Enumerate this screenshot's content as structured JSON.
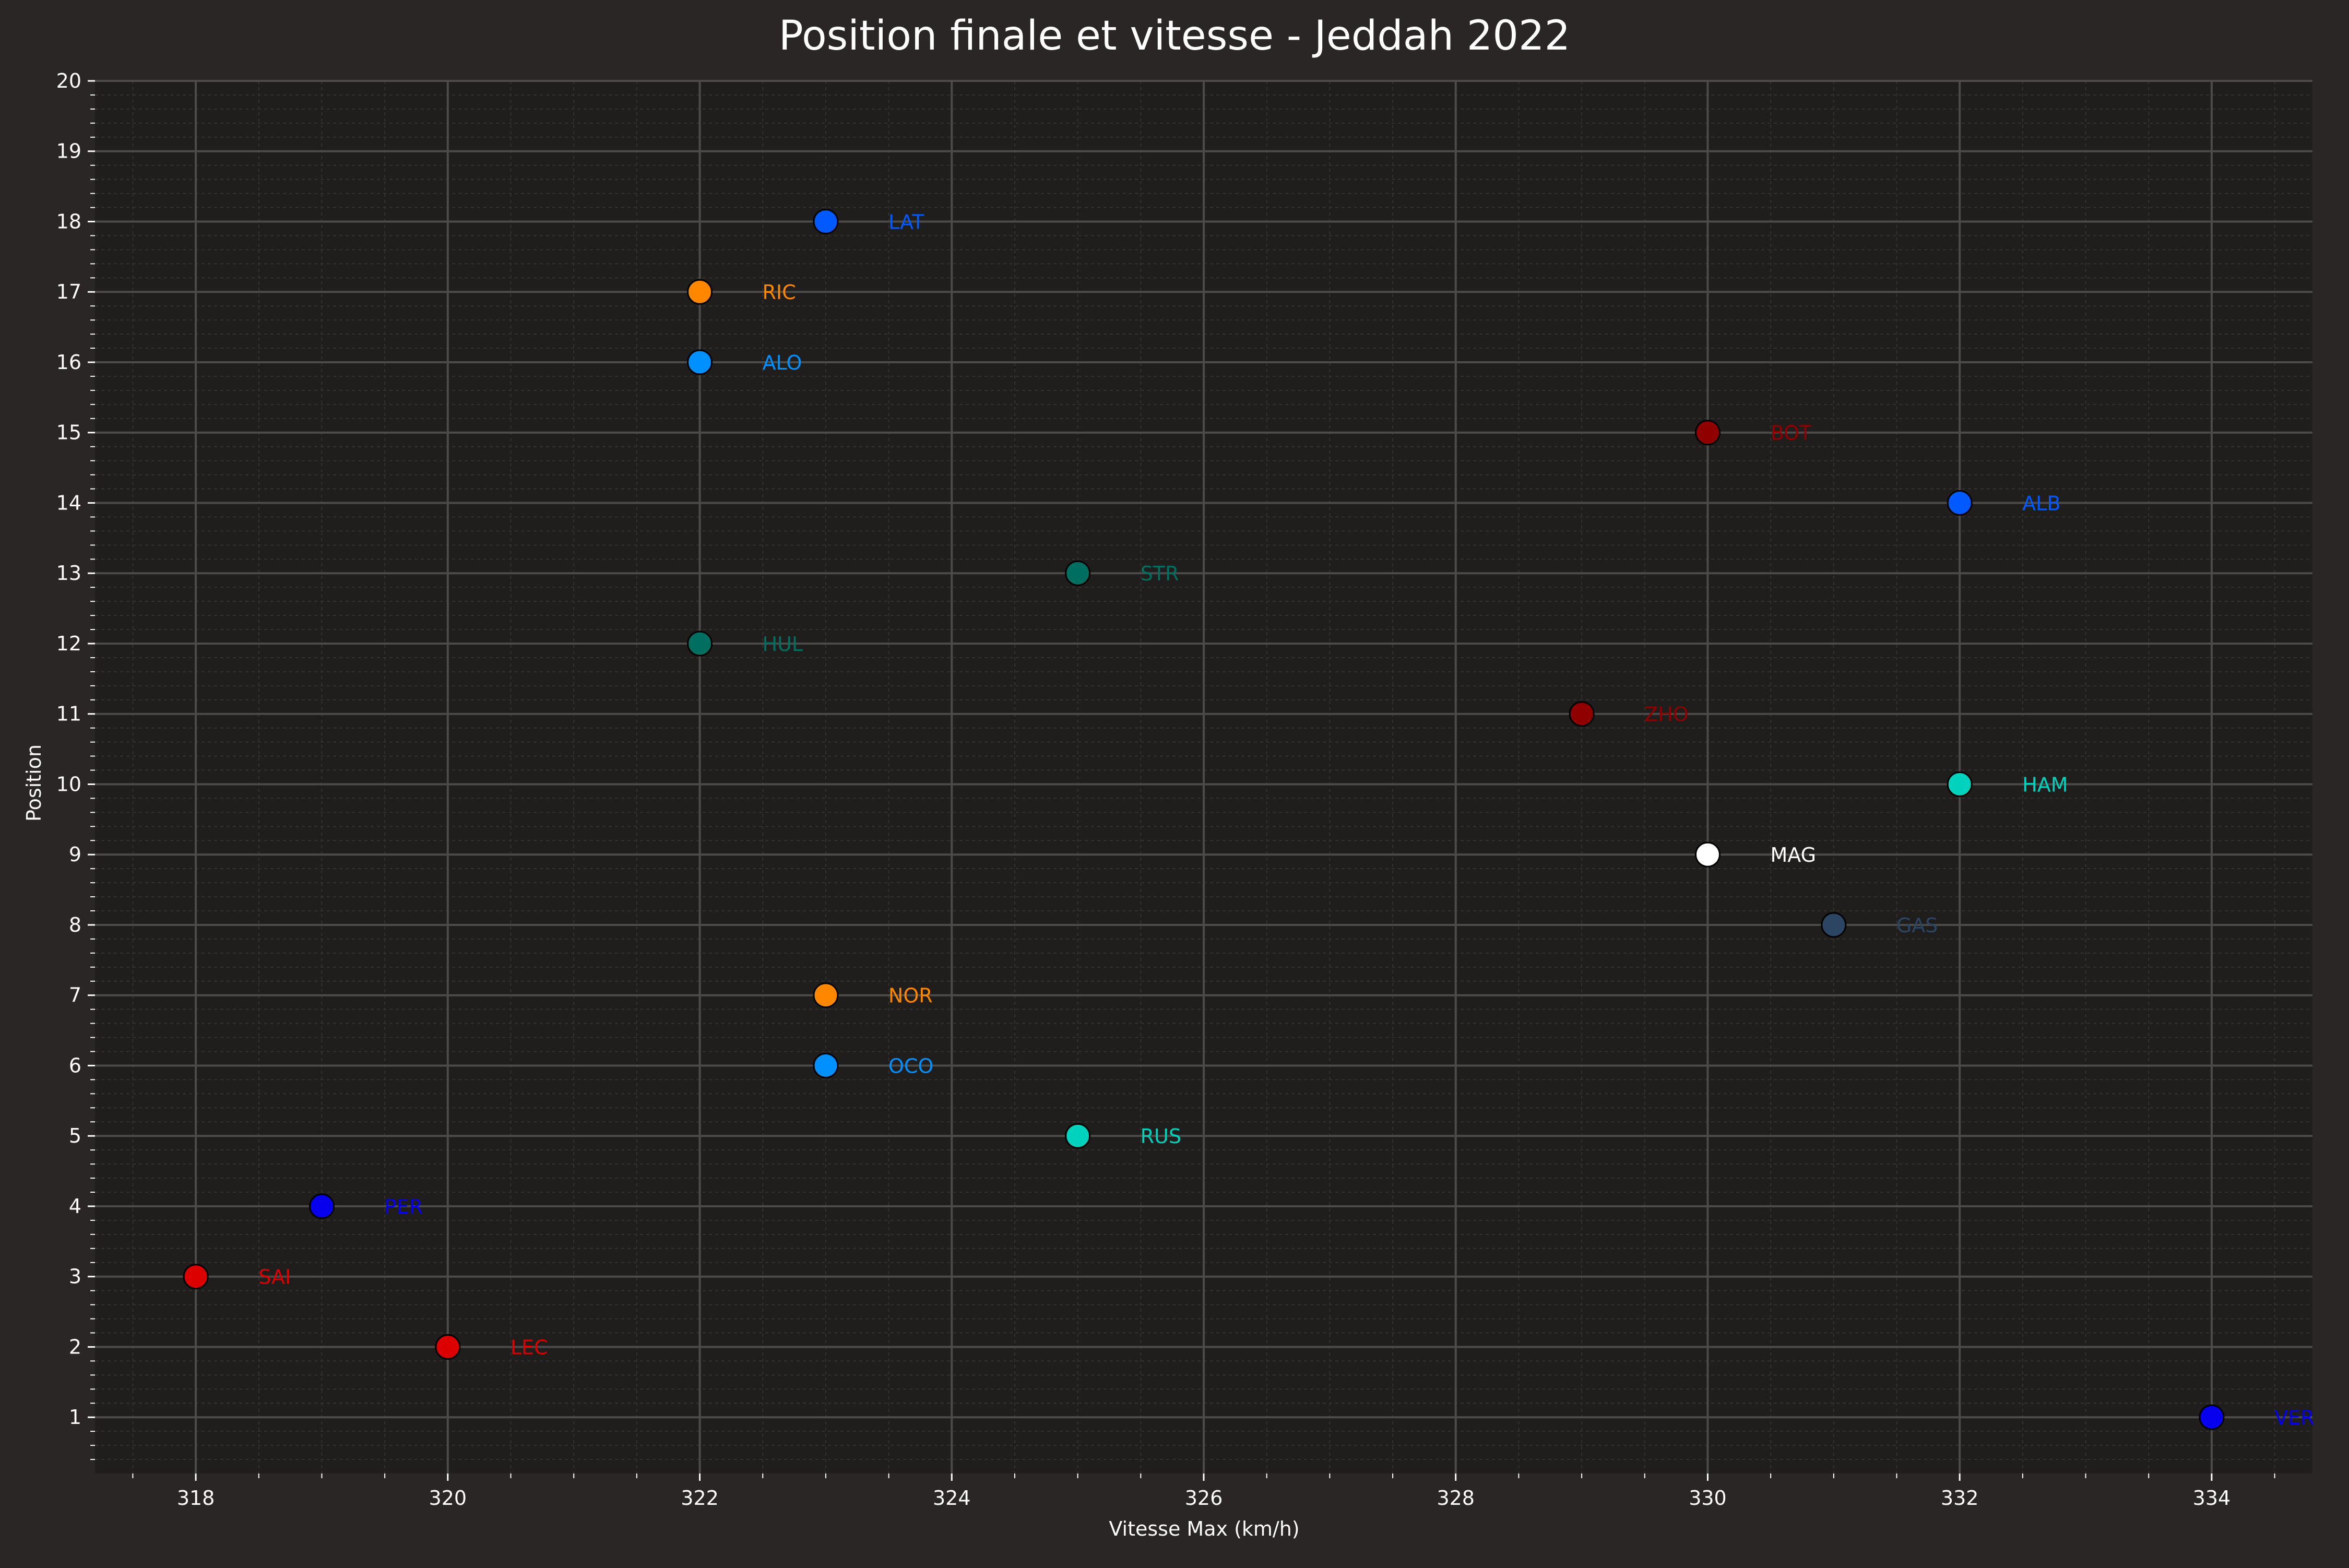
{
  "chart_data": {
    "type": "scatter",
    "title": "Position finale et vitesse - Jeddah 2022",
    "xlabel": "Vitesse Max (km/h)",
    "ylabel": "Position",
    "xlim": [
      317.2,
      334.8
    ],
    "ylim": [
      0.2,
      20
    ],
    "x_ticks": [
      "318",
      "320",
      "322",
      "324",
      "326",
      "328",
      "330",
      "332",
      "334"
    ],
    "y_ticks": [
      "1",
      "2",
      "3",
      "4",
      "5",
      "6",
      "7",
      "8",
      "9",
      "10",
      "11",
      "12",
      "13",
      "14",
      "15",
      "16",
      "17",
      "18",
      "19",
      "20"
    ],
    "grid": true,
    "minor_grid": true,
    "colors": {
      "background": "#292625",
      "plot_background": "#1f1e1d",
      "text": "#ffffff",
      "major_grid": "#4d4b4a",
      "minor_grid": "#333130"
    },
    "points": [
      {
        "label": "VER",
        "x": 334,
        "y": 1,
        "color": "#0600ef"
      },
      {
        "label": "LEC",
        "x": 320,
        "y": 2,
        "color": "#dc0000"
      },
      {
        "label": "SAI",
        "x": 318,
        "y": 3,
        "color": "#dc0000"
      },
      {
        "label": "PER",
        "x": 319,
        "y": 4,
        "color": "#0600ef"
      },
      {
        "label": "RUS",
        "x": 325,
        "y": 5,
        "color": "#00d2be"
      },
      {
        "label": "OCO",
        "x": 323,
        "y": 6,
        "color": "#0090ff"
      },
      {
        "label": "NOR",
        "x": 323,
        "y": 7,
        "color": "#ff8700"
      },
      {
        "label": "GAS",
        "x": 331,
        "y": 8,
        "color": "#2b4562"
      },
      {
        "label": "MAG",
        "x": 330,
        "y": 9,
        "color": "#ffffff"
      },
      {
        "label": "HAM",
        "x": 332,
        "y": 10,
        "color": "#00d2be"
      },
      {
        "label": "ZHO",
        "x": 329,
        "y": 11,
        "color": "#900000"
      },
      {
        "label": "HUL",
        "x": 322,
        "y": 12,
        "color": "#006f62"
      },
      {
        "label": "STR",
        "x": 325,
        "y": 13,
        "color": "#006f62"
      },
      {
        "label": "ALB",
        "x": 332,
        "y": 14,
        "color": "#005aff"
      },
      {
        "label": "BOT",
        "x": 330,
        "y": 15,
        "color": "#900000"
      },
      {
        "label": "ALO",
        "x": 322,
        "y": 16,
        "color": "#0090ff"
      },
      {
        "label": "RIC",
        "x": 322,
        "y": 17,
        "color": "#ff8700"
      },
      {
        "label": "LAT",
        "x": 323,
        "y": 18,
        "color": "#005aff"
      }
    ]
  }
}
